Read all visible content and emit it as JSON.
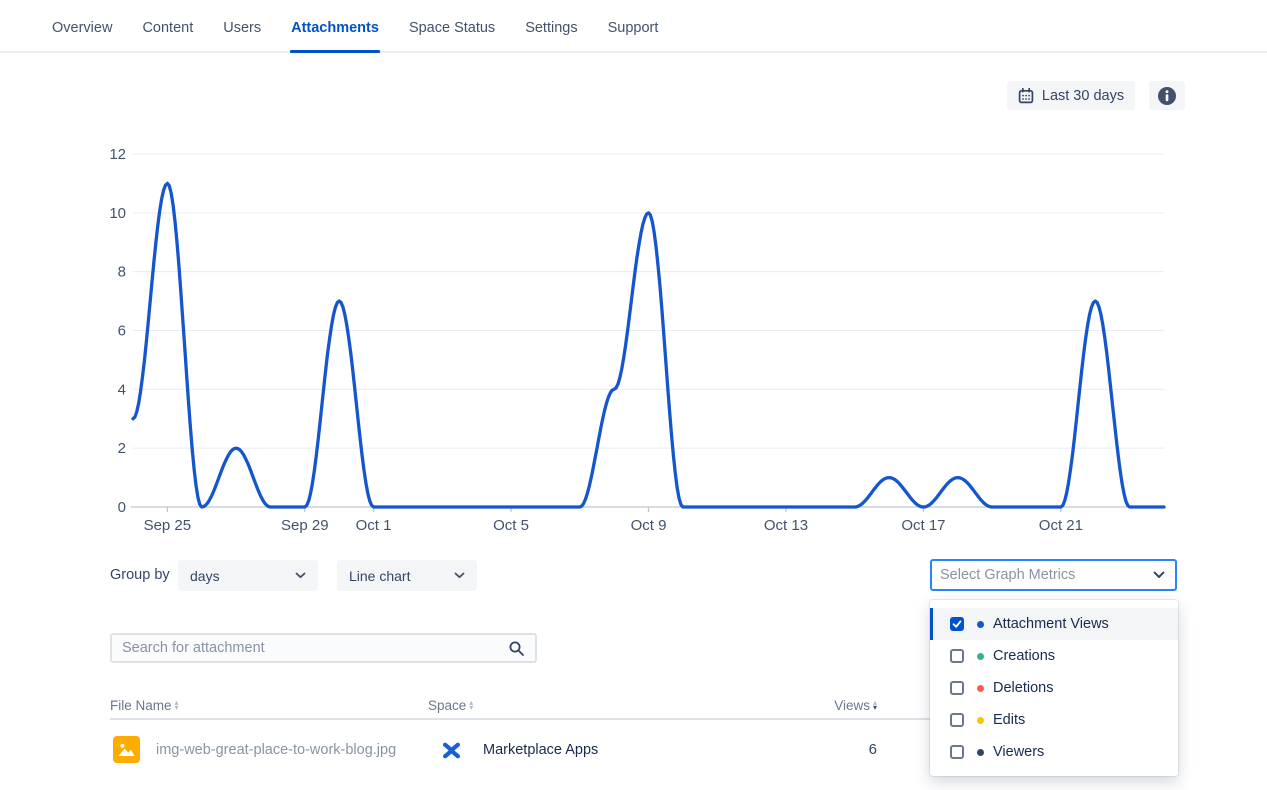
{
  "tabs": {
    "items": [
      {
        "label": "Overview",
        "active": false
      },
      {
        "label": "Content",
        "active": false
      },
      {
        "label": "Users",
        "active": false
      },
      {
        "label": "Attachments",
        "active": true
      },
      {
        "label": "Space Status",
        "active": false
      },
      {
        "label": "Settings",
        "active": false
      },
      {
        "label": "Support",
        "active": false
      }
    ]
  },
  "toolbar": {
    "date_range_label": "Last 30 days",
    "info_icon": "info-circle"
  },
  "chart_data": {
    "type": "line",
    "x": [
      "Sep 24",
      "Sep 25",
      "Sep 26",
      "Sep 27",
      "Sep 28",
      "Sep 29",
      "Sep 30",
      "Oct 1",
      "Oct 2",
      "Oct 3",
      "Oct 4",
      "Oct 5",
      "Oct 6",
      "Oct 7",
      "Oct 8",
      "Oct 9",
      "Oct 10",
      "Oct 11",
      "Oct 12",
      "Oct 13",
      "Oct 14",
      "Oct 15",
      "Oct 16",
      "Oct 17",
      "Oct 18",
      "Oct 19",
      "Oct 20",
      "Oct 21",
      "Oct 22",
      "Oct 23",
      "Oct 24"
    ],
    "series": [
      {
        "name": "Attachment Views",
        "color": "#1556CC",
        "values": [
          3,
          11,
          0,
          2,
          0,
          0,
          7,
          0,
          0,
          0,
          0,
          0,
          0,
          0,
          4,
          10,
          0,
          0,
          0,
          0,
          0,
          0,
          1,
          0,
          1,
          0,
          0,
          0,
          7,
          0,
          0
        ]
      }
    ],
    "ylim": [
      0,
      12
    ],
    "yticks": [
      0,
      2,
      4,
      6,
      8,
      10,
      12
    ],
    "xtick_indices": [
      1,
      5,
      7,
      11,
      15,
      19,
      23,
      27
    ],
    "xtick_labels": [
      "Sep 25",
      "Sep 29",
      "Oct 1",
      "Oct 5",
      "Oct 9",
      "Oct 13",
      "Oct 17",
      "Oct 21"
    ],
    "grid": true,
    "legend": "none"
  },
  "controls": {
    "group_by_label": "Group by",
    "group_by_value": "days",
    "chart_type_value": "Line chart",
    "metrics_placeholder": "Select Graph Metrics"
  },
  "metrics_menu": {
    "items": [
      {
        "label": "Attachment Views",
        "checked": true,
        "active": true,
        "dot_color": "#1556CC"
      },
      {
        "label": "Creations",
        "checked": false,
        "active": false,
        "dot_color": "#36B37E"
      },
      {
        "label": "Deletions",
        "checked": false,
        "active": false,
        "dot_color": "#FF5A52"
      },
      {
        "label": "Edits",
        "checked": false,
        "active": false,
        "dot_color": "#FFC400"
      },
      {
        "label": "Viewers",
        "checked": false,
        "active": false,
        "dot_color": "#344563"
      }
    ]
  },
  "search": {
    "placeholder": "Search for attachment"
  },
  "table": {
    "columns": [
      {
        "label": "File Name",
        "sort": "none"
      },
      {
        "label": "Space",
        "sort": "none"
      },
      {
        "label": "Views",
        "sort": "desc"
      }
    ],
    "rows": [
      {
        "file_name": "img-web-great-place-to-work-blog.jpg",
        "space": "Marketplace Apps",
        "views": "6"
      }
    ]
  },
  "colors": {
    "accent": "#0052CC",
    "focus_border": "#2684FF",
    "line": "#1556CC",
    "grid": "#EBECF0",
    "axis": "#C1C7D0",
    "text_dark": "#172B4D",
    "text_medium": "#42526E",
    "text_gray": "#8993A4",
    "file_icon_bg": "#FFAB00",
    "space_icon": "#1B5FD6"
  }
}
